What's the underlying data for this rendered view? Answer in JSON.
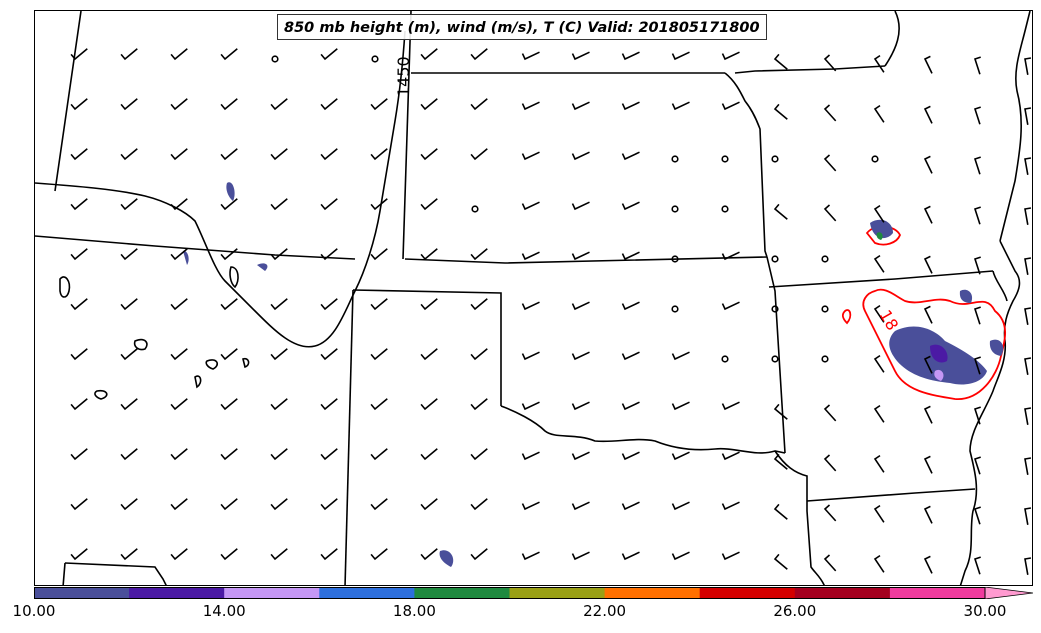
{
  "title": "850 mb height (m), wind (m/s), T (C) Valid: 201805171800",
  "contour_labels": {
    "height": "1450",
    "temperature": "18"
  },
  "colors": {
    "boundaries": "#000000",
    "temperature_contour": "#ff0000",
    "wind_barbs": "#000000"
  },
  "colorbar": {
    "min": 10.0,
    "max": 30.0,
    "extend": "max",
    "colors": [
      "#4a4f9a",
      "#4b1aa4",
      "#c597f5",
      "#2d6fdd",
      "#1f8a3f",
      "#9aa015",
      "#ff7000",
      "#d40000",
      "#a4001f",
      "#f03b9e"
    ],
    "over_color": "#ff9ad0",
    "tick_labels": [
      "10.00",
      "14.00",
      "18.00",
      "22.00",
      "26.00",
      "30.00"
    ]
  }
}
